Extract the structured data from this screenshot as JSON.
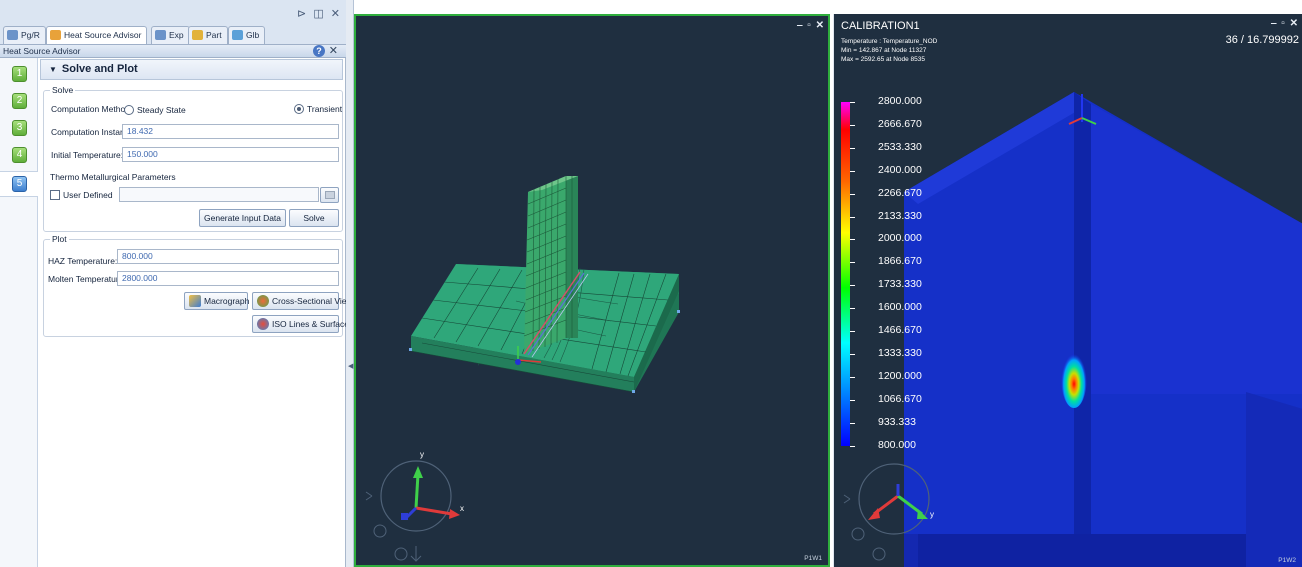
{
  "tabs": [
    {
      "label": "Pg/R",
      "icon": "pgr-icon",
      "active": false
    },
    {
      "label": "Heat Source Advisor",
      "icon": "heat-source-icon",
      "active": true
    },
    {
      "label": "Exp",
      "icon": "explorer-icon",
      "active": false
    },
    {
      "label": "Part",
      "icon": "part-icon",
      "active": false
    },
    {
      "label": "Glb",
      "icon": "global-icon",
      "active": false
    }
  ],
  "window_controls": "⊳ ◫ ✕",
  "advisor": {
    "title": "Heat Source Advisor",
    "help": "?",
    "close": "✕"
  },
  "steps": [
    "1",
    "2",
    "3",
    "4",
    "5"
  ],
  "section": {
    "title": "Solve and Plot"
  },
  "solve": {
    "legend": "Solve",
    "computation_method_label": "Computation Method:",
    "steady_state_label": "Steady State",
    "transient_label": "Transient",
    "computation_instant_label": "Computation Instant:",
    "computation_instant_value": "18.432",
    "initial_temperature_label": "Initial Temperature:",
    "initial_temperature_value": "150.000",
    "thermo_label": "Thermo Metallurgical Parameters",
    "user_defined_label": "User Defined",
    "generate_input_label": "Generate Input Data",
    "solve_label": "Solve"
  },
  "plot": {
    "legend": "Plot",
    "haz_label": "HAZ Temperature:",
    "haz_value": "800.000",
    "molten_label": "Molten Temperature:",
    "molten_value": "2800.000",
    "macrograph_label": "Macrograph",
    "cross_sectional_label": "Cross-Sectional View",
    "iso_lines_label": "ISO Lines & Surfaces"
  },
  "viewport1": {
    "controls": "‒ ▫ ✕",
    "axis_x": "x",
    "axis_y": "y",
    "tag": "P1W1"
  },
  "viewport2": {
    "controls": "‒ ▫ ✕",
    "title": "CALIBRATION1",
    "line1": "Temperature : Temperature_NOD",
    "line2": "Min = 142.867 at Node 11327",
    "line3": "Max = 2592.65 at Node 8535",
    "frame": "36 / 16.799992",
    "legend_levels": [
      "2800.000",
      "2666.670",
      "2533.330",
      "2400.000",
      "2266.670",
      "2133.330",
      "2000.000",
      "1866.670",
      "1733.330",
      "1600.000",
      "1466.670",
      "1333.330",
      "1200.000",
      "1066.670",
      "933.333",
      "800.000"
    ],
    "axis_y": "y",
    "tag": "P1W2"
  },
  "colors": {
    "viewport_bg": "#1f2f40",
    "active_viewport_border": "#2fae3d",
    "mesh_green": "#2fa77a",
    "plate_blue": "#1530c8",
    "step_green": "#6cbb45",
    "step_active": "#3d7fcf"
  }
}
